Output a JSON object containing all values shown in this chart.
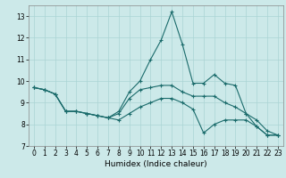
{
  "xlabel": "Humidex (Indice chaleur)",
  "xlim": [
    -0.5,
    23.5
  ],
  "ylim": [
    7,
    13.5
  ],
  "yticks": [
    7,
    8,
    9,
    10,
    11,
    12,
    13
  ],
  "xticks": [
    0,
    1,
    2,
    3,
    4,
    5,
    6,
    7,
    8,
    9,
    10,
    11,
    12,
    13,
    14,
    15,
    16,
    17,
    18,
    19,
    20,
    21,
    22,
    23
  ],
  "background_color": "#cce9e9",
  "grid_color": "#aad4d4",
  "line_color": "#1a6b6b",
  "series": {
    "top": [
      9.7,
      9.6,
      9.4,
      8.6,
      8.6,
      8.5,
      8.4,
      8.3,
      8.6,
      9.5,
      10.0,
      11.0,
      11.9,
      13.2,
      11.7,
      9.9,
      9.9,
      10.3,
      9.9,
      9.8,
      8.5,
      7.9,
      7.5,
      7.5
    ],
    "mid": [
      9.7,
      9.6,
      9.4,
      8.6,
      8.6,
      8.5,
      8.4,
      8.3,
      8.5,
      9.2,
      9.6,
      9.7,
      9.8,
      9.8,
      9.5,
      9.3,
      9.3,
      9.3,
      9.0,
      8.8,
      8.5,
      8.2,
      7.7,
      7.5
    ],
    "bottom": [
      9.7,
      9.6,
      9.4,
      8.6,
      8.6,
      8.5,
      8.4,
      8.3,
      8.2,
      8.5,
      8.8,
      9.0,
      9.2,
      9.2,
      9.0,
      8.7,
      7.6,
      8.0,
      8.2,
      8.2,
      8.2,
      7.9,
      7.5,
      7.5
    ]
  }
}
